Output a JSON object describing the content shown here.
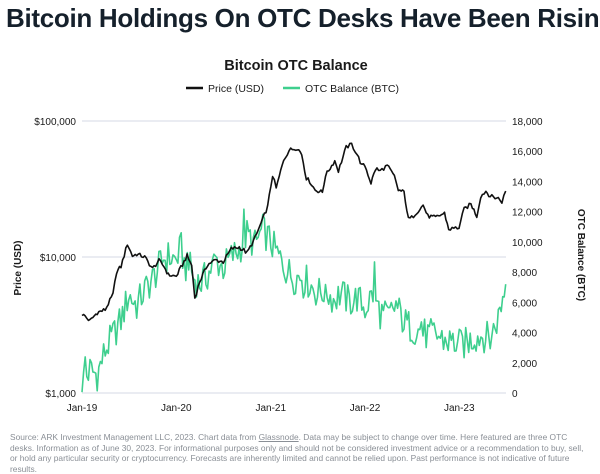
{
  "headline": "Bitcoin Holdings On OTC Desks Have Been Rising",
  "footer": {
    "pre": "Source: ARK Investment Management LLC, 2023. Chart data from ",
    "link": "Glassnode",
    "post": ". Data may be subject to change over time. Here featured are three OTC desks. Information as of June 30, 2023. For informational purposes only and should not be considered investment advice or a recommendation to buy, sell, or hold any particular security or cryptocurrency. Forecasts are inherently limited and cannot be relied upon. Past performance is not indicative of future results."
  },
  "chart_data": {
    "type": "line",
    "title": "Bitcoin OTC Balance",
    "ylabel_left": "Price (USD)",
    "ylabel_right": "OTC Balance (BTC)",
    "y_left_scale": "log",
    "y_left_range": [
      1000,
      100000
    ],
    "y_left_ticks": [
      "$1,000",
      "$10,000",
      "$100,000"
    ],
    "y_right_range": [
      0,
      18000
    ],
    "y_right_ticks": [
      "0",
      "2,000",
      "4,000",
      "6,000",
      "8,000",
      "10,000",
      "12,000",
      "14,000",
      "16,000",
      "18,000"
    ],
    "x_ticks": [
      "Jan-19",
      "Jan-20",
      "Jan-21",
      "Jan-22",
      "Jan-23"
    ],
    "x_range": [
      "2019-01",
      "2023-07"
    ],
    "legend_position": "top-center",
    "grid": "horizontal",
    "series": [
      {
        "name": "Price (USD)",
        "axis": "left",
        "color": "#111111",
        "points": [
          [
            "2019-01-01",
            3800
          ],
          [
            "2019-02-01",
            3400
          ],
          [
            "2019-03-01",
            3900
          ],
          [
            "2019-04-01",
            4100
          ],
          [
            "2019-05-01",
            5300
          ],
          [
            "2019-05-15",
            7800
          ],
          [
            "2019-06-01",
            8500
          ],
          [
            "2019-06-26",
            12500
          ],
          [
            "2019-07-15",
            10200
          ],
          [
            "2019-08-01",
            10500
          ],
          [
            "2019-09-01",
            10000
          ],
          [
            "2019-10-01",
            8200
          ],
          [
            "2019-10-26",
            9400
          ],
          [
            "2019-11-15",
            8500
          ],
          [
            "2019-12-01",
            7400
          ],
          [
            "2020-01-01",
            7200
          ],
          [
            "2020-02-12",
            10200
          ],
          [
            "2020-03-01",
            8600
          ],
          [
            "2020-03-13",
            5000
          ],
          [
            "2020-04-01",
            6600
          ],
          [
            "2020-05-01",
            8800
          ],
          [
            "2020-06-01",
            9500
          ],
          [
            "2020-07-01",
            9200
          ],
          [
            "2020-08-01",
            11500
          ],
          [
            "2020-09-01",
            11800
          ],
          [
            "2020-10-01",
            10700
          ],
          [
            "2020-11-01",
            13800
          ],
          [
            "2020-12-01",
            19000
          ],
          [
            "2020-12-20",
            23500
          ],
          [
            "2021-01-08",
            40000
          ],
          [
            "2021-01-22",
            32000
          ],
          [
            "2021-02-20",
            52000
          ],
          [
            "2021-03-13",
            61000
          ],
          [
            "2021-04-14",
            63500
          ],
          [
            "2021-05-01",
            57000
          ],
          [
            "2021-05-19",
            38000
          ],
          [
            "2021-06-01",
            36000
          ],
          [
            "2021-06-22",
            31000
          ],
          [
            "2021-07-20",
            30000
          ],
          [
            "2021-08-01",
            40000
          ],
          [
            "2021-09-06",
            51000
          ],
          [
            "2021-09-20",
            43000
          ],
          [
            "2021-10-20",
            64000
          ],
          [
            "2021-11-10",
            67500
          ],
          [
            "2021-12-01",
            57000
          ],
          [
            "2021-12-20",
            47000
          ],
          [
            "2022-01-01",
            47000
          ],
          [
            "2022-01-24",
            35000
          ],
          [
            "2022-02-10",
            44000
          ],
          [
            "2022-03-01",
            43000
          ],
          [
            "2022-03-28",
            47000
          ],
          [
            "2022-04-25",
            39000
          ],
          [
            "2022-05-10",
            31000
          ],
          [
            "2022-06-01",
            30000
          ],
          [
            "2022-06-18",
            19000
          ],
          [
            "2022-07-01",
            19500
          ],
          [
            "2022-08-14",
            24000
          ],
          [
            "2022-09-01",
            20000
          ],
          [
            "2022-10-01",
            19500
          ],
          [
            "2022-11-05",
            21000
          ],
          [
            "2022-11-21",
            16000
          ],
          [
            "2022-12-31",
            16500
          ],
          [
            "2023-01-20",
            22500
          ],
          [
            "2023-02-15",
            24500
          ],
          [
            "2023-03-10",
            20000
          ],
          [
            "2023-03-25",
            28000
          ],
          [
            "2023-04-14",
            30500
          ],
          [
            "2023-05-01",
            28000
          ],
          [
            "2023-06-01",
            27000
          ],
          [
            "2023-06-15",
            25500
          ],
          [
            "2023-06-30",
            30500
          ]
        ]
      },
      {
        "name": "OTC Balance (BTC)",
        "axis": "right",
        "color": "#3ecf8e",
        "points": [
          [
            "2019-01-01",
            700
          ],
          [
            "2019-02-01",
            1500
          ],
          [
            "2019-03-01",
            1200
          ],
          [
            "2019-04-01",
            2800
          ],
          [
            "2019-05-01",
            3800
          ],
          [
            "2019-06-01",
            4800
          ],
          [
            "2019-07-01",
            6500
          ],
          [
            "2019-08-01",
            5800
          ],
          [
            "2019-09-01",
            6800
          ],
          [
            "2019-10-01",
            7500
          ],
          [
            "2019-11-01",
            8500
          ],
          [
            "2019-12-01",
            9000
          ],
          [
            "2020-01-01",
            8800
          ],
          [
            "2020-01-20",
            9600
          ],
          [
            "2020-02-01",
            8500
          ],
          [
            "2020-03-01",
            7800
          ],
          [
            "2020-04-01",
            7200
          ],
          [
            "2020-05-01",
            7800
          ],
          [
            "2020-06-01",
            8800
          ],
          [
            "2020-07-01",
            8300
          ],
          [
            "2020-08-01",
            9000
          ],
          [
            "2020-09-01",
            9500
          ],
          [
            "2020-10-01",
            10500
          ],
          [
            "2020-11-01",
            9800
          ],
          [
            "2020-12-01",
            10800
          ],
          [
            "2021-01-01",
            10000
          ],
          [
            "2021-02-01",
            9000
          ],
          [
            "2021-03-01",
            8200
          ],
          [
            "2021-04-01",
            7600
          ],
          [
            "2021-05-01",
            7800
          ],
          [
            "2021-06-01",
            7200
          ],
          [
            "2021-07-01",
            6600
          ],
          [
            "2021-08-01",
            6800
          ],
          [
            "2021-09-01",
            6200
          ],
          [
            "2021-10-01",
            6600
          ],
          [
            "2021-11-01",
            6000
          ],
          [
            "2021-12-01",
            6300
          ],
          [
            "2022-01-01",
            5600
          ],
          [
            "2022-02-01",
            6600
          ],
          [
            "2022-03-01",
            5300
          ],
          [
            "2022-04-01",
            5000
          ],
          [
            "2022-05-01",
            5800
          ],
          [
            "2022-06-01",
            4700
          ],
          [
            "2022-07-01",
            4300
          ],
          [
            "2022-08-01",
            4100
          ],
          [
            "2022-09-01",
            3800
          ],
          [
            "2022-10-01",
            3900
          ],
          [
            "2022-11-01",
            3500
          ],
          [
            "2022-12-01",
            3400
          ],
          [
            "2023-01-01",
            3200
          ],
          [
            "2023-02-01",
            3300
          ],
          [
            "2023-03-01",
            3700
          ],
          [
            "2023-04-01",
            3800
          ],
          [
            "2023-05-01",
            3600
          ],
          [
            "2023-06-01",
            5000
          ],
          [
            "2023-06-30",
            7200
          ]
        ]
      }
    ]
  }
}
